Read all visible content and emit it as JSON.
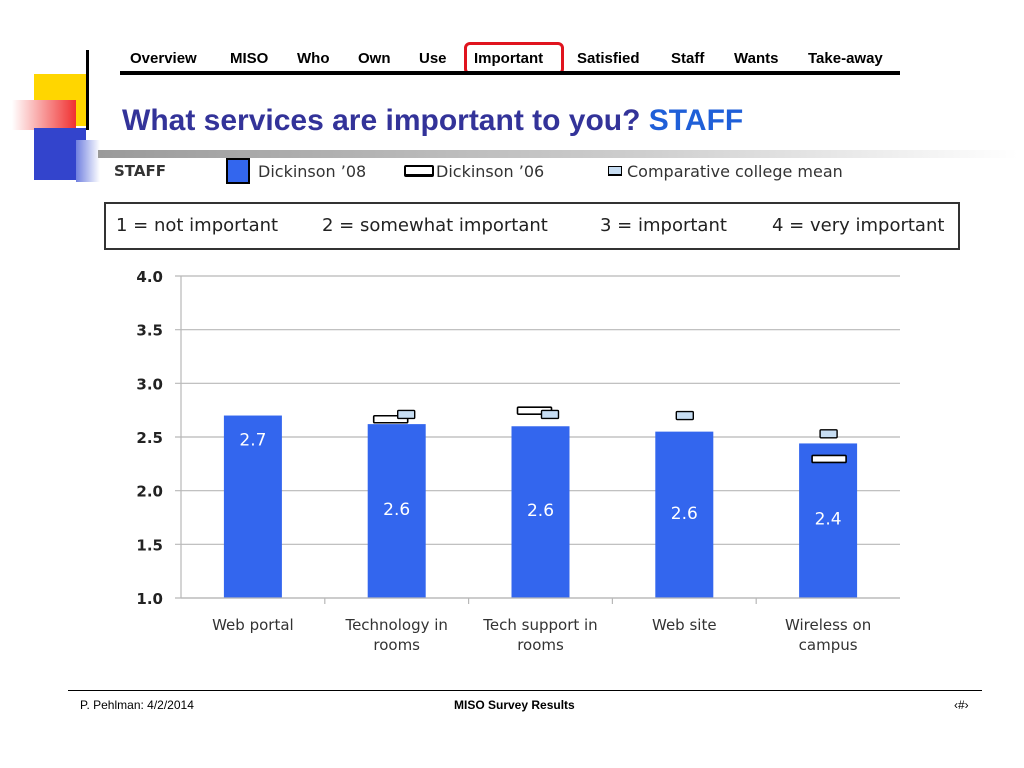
{
  "nav": {
    "items": [
      "Overview",
      "MISO",
      "Who",
      "Own",
      "Use",
      "Important",
      "Satisfied",
      "Staff",
      "Wants",
      "Take-away"
    ],
    "active": "Important",
    "highlight_color": "#e0141e"
  },
  "title": {
    "main": "What services are important to you?",
    "accent": "STAFF",
    "main_color": "#333399",
    "accent_color": "#1f5fd8"
  },
  "legend": {
    "group_label": "STAFF",
    "entries": [
      "Dickinson ’08",
      "Dickinson ’06",
      "Comparative college mean"
    ]
  },
  "scale": [
    "1 = not important",
    "2 = somewhat important",
    "3 = important",
    "4 = very important"
  ],
  "chart_data": {
    "type": "bar",
    "categories": [
      [
        "Web portal"
      ],
      [
        "Technology in",
        "rooms"
      ],
      [
        "Tech support in",
        "rooms"
      ],
      [
        "Web site"
      ],
      [
        "Wireless on",
        "campus"
      ]
    ],
    "series": [
      {
        "name": "Dickinson ’08",
        "values": [
          2.7,
          2.62,
          2.6,
          2.55,
          2.44
        ],
        "labels": [
          "2.7",
          "2.6",
          "2.6",
          "2.6",
          "2.4"
        ],
        "color": "#3366ee"
      },
      {
        "name": "Dickinson ’06",
        "values": [
          null,
          2.67,
          2.75,
          null,
          2.3
        ],
        "color": "#ffffff"
      },
      {
        "name": "Comparative college mean",
        "values": [
          null,
          2.71,
          2.71,
          2.7,
          2.53
        ],
        "color": "#c7ddf2"
      }
    ],
    "ylim": [
      1.0,
      4.0
    ],
    "yticks": [
      "1.0",
      "1.5",
      "2.0",
      "2.5",
      "3.0",
      "3.5",
      "4.0"
    ],
    "grid": true,
    "legend_position": "top"
  },
  "footer": {
    "left": "P. Pehlman: 4/2/2014",
    "center": "MISO Survey Results",
    "right": "‹#›"
  }
}
